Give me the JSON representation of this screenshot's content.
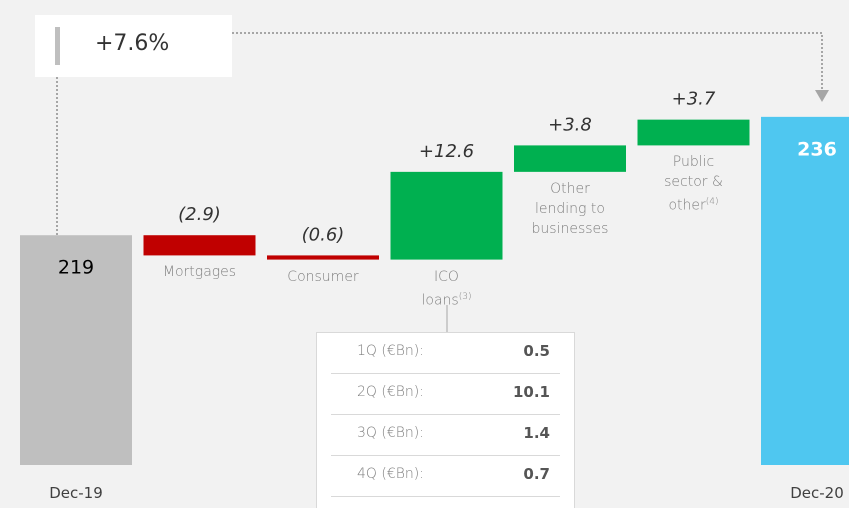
{
  "chart_data": {
    "type": "waterfall",
    "annotation": "+7.6%",
    "categories": [
      "Dec-19",
      "Mortgages",
      "Consumer",
      "ICO loans",
      "Other lending to businesses",
      "Public sector & other",
      "Dec-20"
    ],
    "category_notes": [
      null,
      null,
      null,
      "(3)",
      null,
      "(4)",
      null
    ],
    "measure": [
      "absolute",
      "relative",
      "relative",
      "relative",
      "relative",
      "relative",
      "absolute"
    ],
    "values": [
      219,
      -2.9,
      -0.6,
      12.6,
      3.8,
      3.7,
      236
    ],
    "value_labels": [
      "219",
      "(2.9)",
      "(0.6)",
      "+12.6",
      "+3.8",
      "+3.7",
      "236"
    ],
    "colors": [
      "#bfbfbf",
      "#c00000",
      "#c00000",
      "#00b050",
      "#00b050",
      "#00b050",
      "#4fc7f0"
    ],
    "ylim": [
      186,
      240
    ],
    "breakdown": {
      "labels": [
        "1Q (€Bn):",
        "2Q (€Bn):",
        "3Q (€Bn):",
        "4Q (€Bn):"
      ],
      "values": [
        0.5,
        10.1,
        1.4,
        0.7
      ]
    }
  }
}
